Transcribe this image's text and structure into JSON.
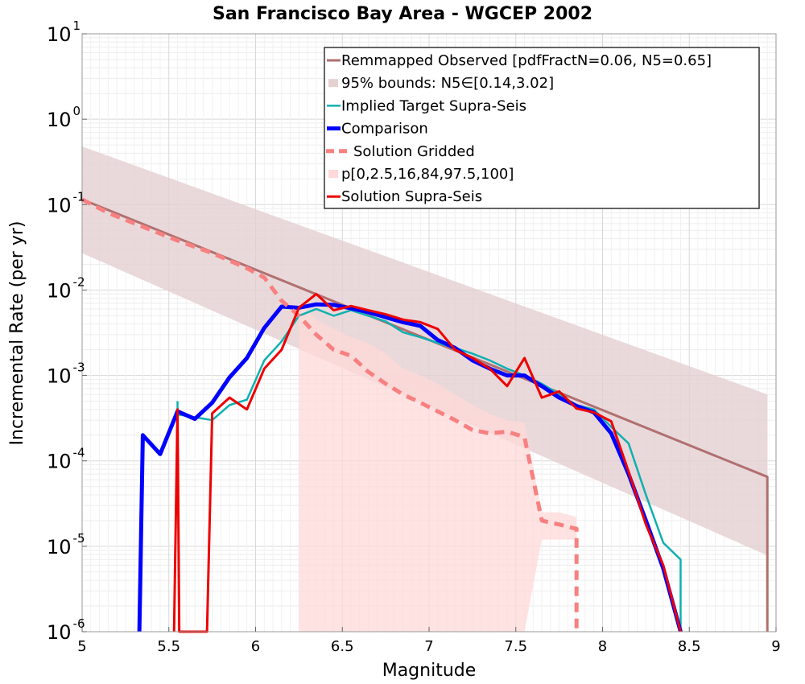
{
  "chart_data": {
    "type": "line",
    "title": "San Francisco Bay Area - WGCEP 2002",
    "xlabel": "Magnitude",
    "ylabel": "Incremental Rate (per yr)",
    "xlim": [
      5,
      9
    ],
    "ylim": [
      1e-06,
      10
    ],
    "yscale": "log",
    "grid": true,
    "legend_position": "top-right",
    "x_ticks": [
      "5",
      "5.5",
      "6",
      "6.5",
      "7",
      "7.5",
      "8",
      "8.5",
      "9"
    ],
    "y_ticks": [
      {
        "base": "10",
        "exp": "1"
      },
      {
        "base": "10",
        "exp": "0"
      },
      {
        "base": "10",
        "exp": "-1"
      },
      {
        "base": "10",
        "exp": "-2"
      },
      {
        "base": "10",
        "exp": "-3"
      },
      {
        "base": "10",
        "exp": "-4"
      },
      {
        "base": "10",
        "exp": "-5"
      },
      {
        "base": "10",
        "exp": "-6"
      }
    ],
    "colors": {
      "observed": "#b07070",
      "observed_bounds": "#e5d0d2",
      "target": "#10b0b0",
      "comparison": "#0000ff",
      "gridded": "#f88080",
      "percentile_band": "#ffd8d8",
      "solution": "#ee0000"
    },
    "series": [
      {
        "key": "observed",
        "name": "Remmapped Observed [pdfFractN=0.06, N5=0.65]",
        "style": "line",
        "x": [
          5.0,
          8.95,
          8.95
        ],
        "y": [
          0.115,
          6.5e-05,
          1e-06
        ]
      },
      {
        "key": "observed_bounds",
        "name": "95% bounds: N5∈[0.14,3.02]",
        "style": "band",
        "x": [
          5.0,
          8.95
        ],
        "lower": [
          0.027,
          7.8e-06
        ],
        "upper": [
          0.48,
          0.0006
        ]
      },
      {
        "key": "target",
        "name": "Implied Target Supra-Seis",
        "style": "line",
        "x": [
          5.55,
          5.55,
          5.75,
          5.85,
          5.95,
          6.05,
          6.15,
          6.25,
          6.35,
          6.45,
          6.55,
          6.65,
          6.75,
          6.85,
          6.95,
          7.05,
          7.15,
          7.25,
          7.35,
          7.45,
          7.55,
          7.65,
          7.75,
          7.85,
          7.95,
          8.05,
          8.15,
          8.25,
          8.35,
          8.45,
          8.45
        ],
        "y": [
          0.0005,
          0.00035,
          0.0003,
          0.00045,
          0.00052,
          0.0015,
          0.0025,
          0.005,
          0.006,
          0.005,
          0.0058,
          0.005,
          0.0043,
          0.0032,
          0.0028,
          0.0024,
          0.0021,
          0.0018,
          0.0015,
          0.0012,
          0.001,
          0.0008,
          0.0006,
          0.00045,
          0.0004,
          0.00025,
          0.00016,
          4e-05,
          1.1e-05,
          7e-06,
          1e-06
        ]
      },
      {
        "key": "comparison",
        "name": "Comparison",
        "style": "line",
        "x": [
          5.33,
          5.35,
          5.45,
          5.55,
          5.65,
          5.75,
          5.85,
          5.95,
          6.05,
          6.15,
          6.25,
          6.35,
          6.45,
          6.55,
          6.65,
          6.75,
          6.85,
          6.95,
          7.05,
          7.15,
          7.25,
          7.35,
          7.45,
          7.55,
          7.65,
          7.75,
          7.85,
          7.95,
          8.05,
          8.15,
          8.25,
          8.35,
          8.45
        ],
        "y": [
          1e-06,
          0.0002,
          0.00012,
          0.00038,
          0.00031,
          0.00048,
          0.00095,
          0.0016,
          0.0036,
          0.0064,
          0.0062,
          0.0068,
          0.0067,
          0.0061,
          0.0055,
          0.0048,
          0.0042,
          0.0038,
          0.0026,
          0.0021,
          0.0015,
          0.0012,
          0.001,
          0.001,
          0.00075,
          0.00055,
          0.00044,
          0.00037,
          0.00021,
          7e-05,
          2e-05,
          5.5e-06,
          1e-06
        ]
      },
      {
        "key": "gridded",
        "name": "Solution Gridded",
        "style": "dashed",
        "x": [
          5.0,
          5.15,
          5.35,
          5.55,
          5.75,
          5.95,
          6.05,
          6.15,
          6.25,
          6.35,
          6.45,
          6.55,
          6.65,
          6.75,
          6.85,
          6.95,
          7.05,
          7.15,
          7.25,
          7.35,
          7.45,
          7.55,
          7.65,
          7.75,
          7.85,
          7.85
        ],
        "y": [
          0.115,
          0.08,
          0.055,
          0.038,
          0.027,
          0.018,
          0.014,
          0.0075,
          0.005,
          0.003,
          0.002,
          0.0017,
          0.0011,
          0.0008,
          0.0006,
          0.00048,
          0.00038,
          0.0003,
          0.00023,
          0.00021,
          0.00022,
          0.00019,
          2e-05,
          1.8e-05,
          1.6e-05,
          1e-06
        ]
      },
      {
        "key": "percentile_band",
        "name": "p[0,2.5,16,84,97.5,100]",
        "style": "band",
        "x": [
          6.25,
          6.35,
          6.45,
          6.55,
          6.65,
          6.75,
          6.85,
          6.95,
          7.05,
          7.15,
          7.25,
          7.35,
          7.45,
          7.55,
          7.65,
          7.75,
          7.85
        ],
        "lower": [
          1e-06,
          1e-06,
          1e-06,
          1e-06,
          1e-06,
          1e-06,
          1e-06,
          1e-06,
          1e-06,
          1e-06,
          1e-06,
          1e-06,
          1e-06,
          1e-06,
          1.2e-05,
          1.2e-05,
          1.2e-05
        ],
        "upper": [
          0.007,
          0.0045,
          0.0035,
          0.0028,
          0.0024,
          0.0018,
          0.0012,
          0.001,
          0.0008,
          0.0006,
          0.00045,
          0.00035,
          0.0003,
          0.00028,
          2.5e-05,
          2.5e-05,
          2.2e-05
        ]
      },
      {
        "key": "solution",
        "name": "Solution Supra-Seis",
        "style": "line",
        "x": [
          5.53,
          5.55,
          5.56,
          5.72,
          5.75,
          5.85,
          5.95,
          6.05,
          6.15,
          6.25,
          6.35,
          6.45,
          6.55,
          6.65,
          6.75,
          6.85,
          6.95,
          7.05,
          7.15,
          7.25,
          7.35,
          7.45,
          7.55,
          7.65,
          7.75,
          7.85,
          7.95,
          8.05,
          8.15,
          8.25,
          8.35,
          8.45
        ],
        "y": [
          1e-06,
          0.0004,
          1e-06,
          1e-06,
          0.00036,
          0.00055,
          0.0004,
          0.0012,
          0.002,
          0.0062,
          0.009,
          0.0058,
          0.0065,
          0.0058,
          0.0052,
          0.0045,
          0.0042,
          0.0035,
          0.002,
          0.0016,
          0.0012,
          0.00075,
          0.0016,
          0.00055,
          0.00065,
          0.00041,
          0.00037,
          0.00029,
          7.5e-05,
          1.8e-05,
          6e-06,
          1e-06
        ]
      }
    ]
  }
}
